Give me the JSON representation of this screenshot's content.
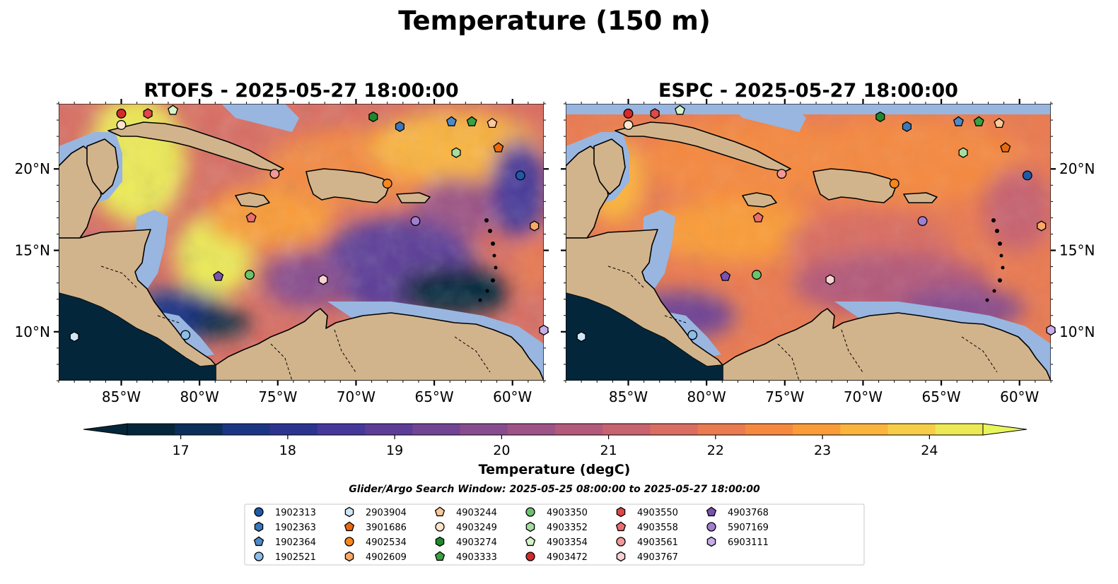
{
  "figure": {
    "title": "Temperature (150 m)",
    "search_window": "Glider/Argo Search Window: 2025-05-25 08:00:00 to 2025-05-27 18:00:00"
  },
  "panels": [
    {
      "title": "RTOFS - 2025-05-27 18:00:00",
      "model": "RTOFS"
    },
    {
      "title": "ESPC - 2025-05-27 18:00:00",
      "model": "ESPC"
    }
  ],
  "map": {
    "lon_range": [
      -89,
      -58
    ],
    "lat_range": [
      7,
      24
    ],
    "lon_ticks": [
      {
        "value": -85,
        "label": "85°W"
      },
      {
        "value": -80,
        "label": "80°W"
      },
      {
        "value": -75,
        "label": "75°W"
      },
      {
        "value": -70,
        "label": "70°W"
      },
      {
        "value": -65,
        "label": "65°W"
      },
      {
        "value": -60,
        "label": "60°W"
      }
    ],
    "lat_ticks": [
      {
        "value": 20,
        "label": "20°N"
      },
      {
        "value": 15,
        "label": "15°N"
      },
      {
        "value": 10,
        "label": "10°N"
      }
    ],
    "colors": {
      "land": "#d2b48c",
      "shallow_water": "#98b6e0",
      "coast": "#000000"
    }
  },
  "colorbar": {
    "label": "Temperature (degC)",
    "min": 16.5,
    "max": 24.5,
    "step": 0.5,
    "ticks": [
      {
        "value": 17,
        "label": "17"
      },
      {
        "value": 18,
        "label": "18"
      },
      {
        "value": 19,
        "label": "19"
      },
      {
        "value": 20,
        "label": "20"
      },
      {
        "value": 21,
        "label": "21"
      },
      {
        "value": 22,
        "label": "22"
      },
      {
        "value": 23,
        "label": "23"
      },
      {
        "value": 24,
        "label": "24"
      }
    ],
    "colors": [
      "#04263a",
      "#0b2e5a",
      "#1b3585",
      "#2b3590",
      "#45389a",
      "#5b3d98",
      "#714494",
      "#874c8e",
      "#9d5385",
      "#b35a7a",
      "#c7626f",
      "#d96d62",
      "#ea7a50",
      "#f5893f",
      "#fa9c38",
      "#fbb43c",
      "#f7cd48",
      "#ecea54"
    ],
    "under_color": "#04263a",
    "over_color": "#e8f65e"
  },
  "legend": {
    "entries": [
      {
        "label": "1902313",
        "marker": "circle",
        "color": "#1f5aa8"
      },
      {
        "label": "1902363",
        "marker": "hexagon",
        "color": "#3a78b8"
      },
      {
        "label": "1902364",
        "marker": "pentagon",
        "color": "#4d8ac9"
      },
      {
        "label": "1902521",
        "marker": "circle",
        "color": "#8dbde9"
      },
      {
        "label": "2903904",
        "marker": "hexagon",
        "color": "#cde7f8"
      },
      {
        "label": "3901686",
        "marker": "pentagon",
        "color": "#e86a10"
      },
      {
        "label": "4902534",
        "marker": "circle",
        "color": "#f5881e"
      },
      {
        "label": "4902609",
        "marker": "hexagon",
        "color": "#f9a865"
      },
      {
        "label": "4903244",
        "marker": "pentagon",
        "color": "#fbc99a"
      },
      {
        "label": "4903249",
        "marker": "circle",
        "color": "#fde4cb"
      },
      {
        "label": "4903274",
        "marker": "hexagon",
        "color": "#1e8a2a"
      },
      {
        "label": "4903333",
        "marker": "pentagon",
        "color": "#3aa140"
      },
      {
        "label": "4903350",
        "marker": "circle",
        "color": "#6bc36b"
      },
      {
        "label": "4903352",
        "marker": "hexagon",
        "color": "#a5dea0"
      },
      {
        "label": "4903354",
        "marker": "pentagon",
        "color": "#d4f3ca"
      },
      {
        "label": "4903472",
        "marker": "circle",
        "color": "#d42a2a"
      },
      {
        "label": "4903550",
        "marker": "hexagon",
        "color": "#e04848"
      },
      {
        "label": "4903558",
        "marker": "pentagon",
        "color": "#ea6e6e"
      },
      {
        "label": "4903561",
        "marker": "circle",
        "color": "#f29898"
      },
      {
        "label": "4903767",
        "marker": "hexagon",
        "color": "#fbd2d2"
      },
      {
        "label": "4903768",
        "marker": "pentagon",
        "color": "#7b52b0"
      },
      {
        "label": "5907169",
        "marker": "circle",
        "color": "#a07fcf"
      },
      {
        "label": "6903111",
        "marker": "hexagon",
        "color": "#c7aee8"
      }
    ]
  },
  "floats": [
    {
      "id": "4903472",
      "lon": -85.0,
      "lat": 23.4
    },
    {
      "id": "4903550",
      "lon": -83.3,
      "lat": 23.4
    },
    {
      "id": "4903354",
      "lon": -81.7,
      "lat": 23.6
    },
    {
      "id": "4903249",
      "lon": -85.0,
      "lat": 22.7
    },
    {
      "id": "4903274",
      "lon": -68.9,
      "lat": 23.2
    },
    {
      "id": "1902363",
      "lon": -67.2,
      "lat": 22.6
    },
    {
      "id": "1902364",
      "lon": -63.9,
      "lat": 22.9
    },
    {
      "id": "4903333",
      "lon": -62.6,
      "lat": 22.9
    },
    {
      "id": "4903244",
      "lon": -61.3,
      "lat": 22.8
    },
    {
      "id": "3901686",
      "lon": -60.9,
      "lat": 21.3
    },
    {
      "id": "4903352",
      "lon": -63.6,
      "lat": 21.0
    },
    {
      "id": "1902313",
      "lon": -59.5,
      "lat": 19.6
    },
    {
      "id": "4903561",
      "lon": -75.2,
      "lat": 19.7
    },
    {
      "id": "4902534",
      "lon": -68.0,
      "lat": 19.1
    },
    {
      "id": "4903558",
      "lon": -76.7,
      "lat": 17.0
    },
    {
      "id": "5907169",
      "lon": -66.2,
      "lat": 16.8
    },
    {
      "id": "4902609",
      "lon": -58.6,
      "lat": 16.5
    },
    {
      "id": "4903768",
      "lon": -78.8,
      "lat": 13.4
    },
    {
      "id": "4903350",
      "lon": -76.8,
      "lat": 13.5
    },
    {
      "id": "4903767",
      "lon": -72.1,
      "lat": 13.2
    },
    {
      "id": "1902521",
      "lon": -80.9,
      "lat": 9.8
    },
    {
      "id": "2903904",
      "lon": -88.0,
      "lat": 9.7
    },
    {
      "id": "6903111",
      "lon": -58.0,
      "lat": 10.1
    }
  ]
}
